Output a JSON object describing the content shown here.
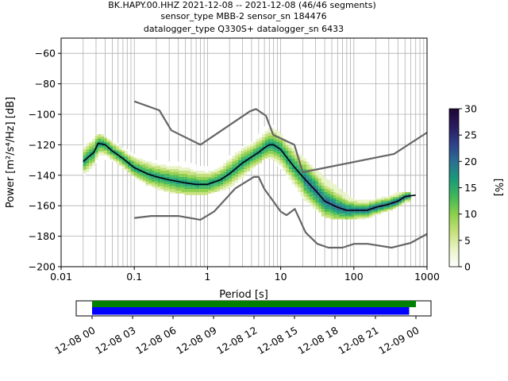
{
  "chart_data": [
    {
      "type": "heatmap",
      "title_lines": [
        "BK.HAPY.00.HHZ   2021-12-08 -- 2021-12-08  (46/46 segments)",
        "sensor_type MBB-2 sensor_sn 184476",
        "datalogger_type Q330S+ datalogger_sn 6433"
      ],
      "xlabel": "Period [s]",
      "ylabel": "Power [m²/s⁴/Hz] [dB]",
      "xscale": "log",
      "xlim": [
        0.01,
        1000
      ],
      "ylim": [
        -200,
        -50
      ],
      "x_ticks": [
        0.01,
        0.1,
        1,
        10,
        100,
        1000
      ],
      "x_tick_labels": [
        "0.01",
        "0.1",
        "1",
        "10",
        "100",
        "1000"
      ],
      "y_ticks": [
        -200,
        -180,
        -160,
        -140,
        -120,
        -100,
        -80,
        -60
      ],
      "y_tick_labels": [
        "−200",
        "−180",
        "−160",
        "−140",
        "−120",
        "−100",
        "−80",
        "−60"
      ],
      "grid": true,
      "colorbar": {
        "label": "[%]",
        "range": [
          0,
          30
        ],
        "ticks": [
          0,
          5,
          10,
          15,
          20,
          25,
          30
        ],
        "colormap": [
          "#ffffff",
          "#e8f3c6",
          "#c5e07a",
          "#8ccf4a",
          "#3fb85a",
          "#1a9a7a",
          "#2a6f92",
          "#2f3f8a",
          "#2a1a5e",
          "#1e0535"
        ]
      },
      "series": [
        {
          "name": "",
          "role": "median (black line)",
          "color": "#000000",
          "x": [
            0.02,
            0.025,
            0.028,
            0.032,
            0.04,
            0.05,
            0.07,
            0.1,
            0.15,
            0.2,
            0.3,
            0.5,
            0.7,
            1,
            1.5,
            2,
            3,
            4,
            5,
            6,
            7,
            8,
            10,
            12,
            15,
            20,
            30,
            40,
            60,
            80,
            100,
            150,
            200,
            300,
            400,
            500,
            700
          ],
          "y": [
            -131,
            -127,
            -125,
            -119,
            -120,
            -124,
            -129,
            -135,
            -139,
            -141,
            -143,
            -145,
            -146,
            -146,
            -143,
            -139,
            -132,
            -128,
            -125,
            -122,
            -120,
            -120,
            -123,
            -128,
            -134,
            -141,
            -150,
            -157,
            -161,
            -163,
            -163,
            -163,
            -161,
            -159,
            -157,
            -154,
            -153
          ]
        },
        {
          "name": "",
          "role": "new high noise model (grey line)",
          "color": "#666666",
          "x": [
            0.1,
            0.22,
            0.32,
            0.8,
            3.8,
            4.6,
            6.3,
            7.9,
            15.4,
            20,
            354.8,
            1000
          ],
          "y": [
            -91.5,
            -97.4,
            -110.5,
            -120,
            -98,
            -96.5,
            -101,
            -113.5,
            -120,
            -138,
            -126,
            -112
          ]
        },
        {
          "name": "",
          "role": "new low noise model (grey line)",
          "color": "#666666",
          "x": [
            0.1,
            0.17,
            0.4,
            0.8,
            1.24,
            2.4,
            4.3,
            5.0,
            6.0,
            10.0,
            12.0,
            15.6,
            21.9,
            31.6,
            45.0,
            70.0,
            101.0,
            154.0,
            328.0,
            600.0,
            1000.0
          ],
          "y": [
            -168,
            -166.7,
            -166.7,
            -169.2,
            -163.7,
            -148.6,
            -141.1,
            -141.1,
            -149,
            -163.8,
            -166.2,
            -162.1,
            -177.5,
            -185,
            -187.5,
            -187.5,
            -185,
            -185,
            -187.5,
            -184.4,
            -178.5
          ]
        }
      ],
      "density_band": {
        "x": [
          0.02,
          0.025,
          0.03,
          0.035,
          0.05,
          0.07,
          0.1,
          0.15,
          0.2,
          0.3,
          0.5,
          0.7,
          1,
          1.5,
          2,
          3,
          4,
          5,
          6,
          7,
          8,
          10,
          12,
          15,
          20,
          30,
          40,
          60,
          80,
          100,
          150,
          200,
          300,
          400,
          500,
          600
        ],
        "upper": [
          -121,
          -119,
          -113,
          -113,
          -118,
          -122,
          -126,
          -129,
          -131,
          -132,
          -131,
          -134,
          -135,
          -133,
          -128,
          -122,
          -118,
          -113,
          -108,
          -107,
          -108,
          -113,
          -118,
          -122,
          -128,
          -136,
          -142,
          -148,
          -153,
          -156,
          -157,
          -156,
          -154,
          -151,
          -151,
          -151
        ],
        "lower": [
          -140,
          -138,
          -132,
          -128,
          -131,
          -135,
          -141,
          -146,
          -149,
          -151,
          -152,
          -153,
          -152,
          -150,
          -148,
          -142,
          -136,
          -132,
          -129,
          -129,
          -130,
          -135,
          -141,
          -147,
          -155,
          -162,
          -167,
          -169,
          -169,
          -169,
          -168,
          -166,
          -163,
          -160,
          -158,
          -157
        ]
      }
    },
    {
      "type": "timeline",
      "tick_labels": [
        "12-08 00",
        "12-08 03",
        "12-08 06",
        "12-08 09",
        "12-08 12",
        "12-08 15",
        "12-08 18",
        "12-08 21",
        "12-09 00"
      ],
      "bars": [
        {
          "role": "data availability",
          "color": "#008000",
          "start_hours": 0,
          "end_hours": 24
        },
        {
          "role": "processed PSD segments",
          "color": "#0000ff",
          "start_hours": 0,
          "end_hours": 23.5
        }
      ]
    }
  ]
}
